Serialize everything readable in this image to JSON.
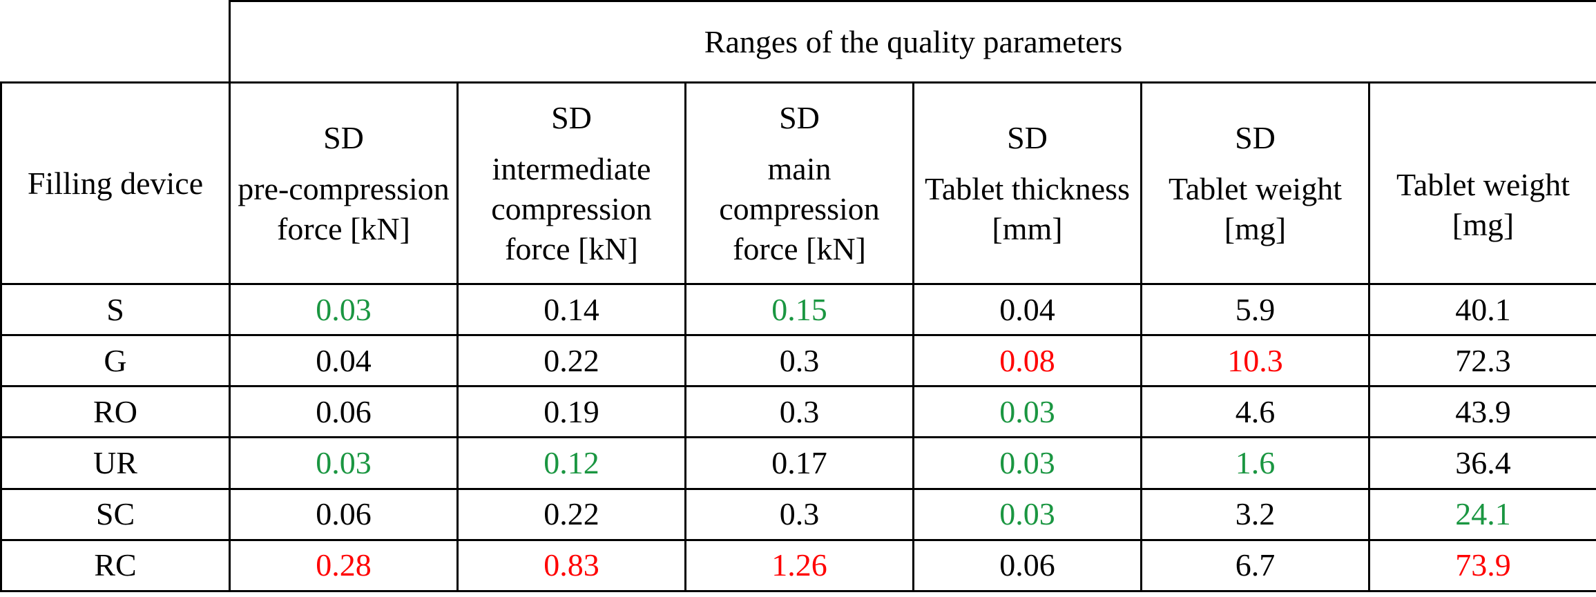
{
  "table": {
    "group_header": "Ranges of the quality parameters",
    "row_header": "Filling device",
    "columns": [
      {
        "prefix": "SD",
        "label": "pre-compression force [kN]"
      },
      {
        "prefix": "SD",
        "label": "intermediate compression force [kN]"
      },
      {
        "prefix": "SD",
        "label": "main compression force [kN]"
      },
      {
        "prefix": "SD",
        "label": "Tablet thickness [mm]"
      },
      {
        "prefix": "SD",
        "label": "Tablet weight [mg]"
      },
      {
        "prefix": "",
        "label": "Tablet weight [mg]"
      }
    ],
    "rows": [
      {
        "device": "S",
        "values": [
          "0.03",
          "0.14",
          "0.15",
          "0.04",
          "5.9",
          "40.1"
        ],
        "status": [
          "best",
          "normal",
          "best",
          "normal",
          "normal",
          "normal"
        ]
      },
      {
        "device": "G",
        "values": [
          "0.04",
          "0.22",
          "0.3",
          "0.08",
          "10.3",
          "72.3"
        ],
        "status": [
          "normal",
          "normal",
          "normal",
          "worst",
          "worst",
          "normal"
        ]
      },
      {
        "device": "RO",
        "values": [
          "0.06",
          "0.19",
          "0.3",
          "0.03",
          "4.6",
          "43.9"
        ],
        "status": [
          "normal",
          "normal",
          "normal",
          "best",
          "normal",
          "normal"
        ]
      },
      {
        "device": "UR",
        "values": [
          "0.03",
          "0.12",
          "0.17",
          "0.03",
          "1.6",
          "36.4"
        ],
        "status": [
          "best",
          "best",
          "normal",
          "best",
          "best",
          "normal"
        ]
      },
      {
        "device": "SC",
        "values": [
          "0.06",
          "0.22",
          "0.3",
          "0.03",
          "3.2",
          "24.1"
        ],
        "status": [
          "normal",
          "normal",
          "normal",
          "best",
          "normal",
          "best"
        ]
      },
      {
        "device": "RC",
        "values": [
          "0.28",
          "0.83",
          "1.26",
          "0.06",
          "6.7",
          "73.9"
        ],
        "status": [
          "worst",
          "worst",
          "worst",
          "normal",
          "normal",
          "worst"
        ]
      }
    ]
  },
  "colors": {
    "best": "#1a9641",
    "worst": "#ff0000",
    "normal": "#000000",
    "border": "#000000"
  }
}
